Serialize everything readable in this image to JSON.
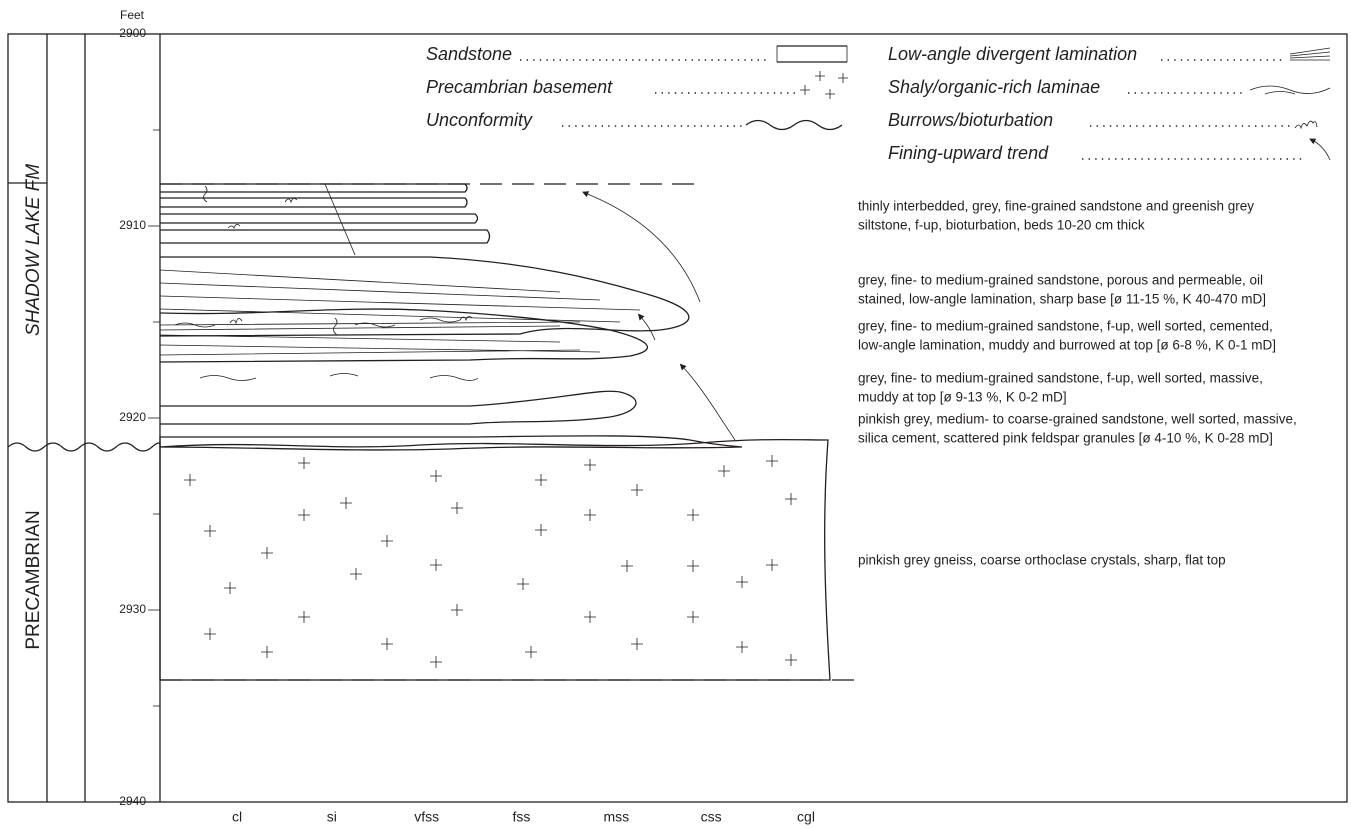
{
  "depth_axis": {
    "unit": "Feet",
    "ticks": [
      2900,
      2910,
      2920,
      2930,
      2940
    ]
  },
  "formations": [
    "SHADOW LAKE FM",
    "PRECAMBRIAN"
  ],
  "grain_sizes": [
    "cl",
    "si",
    "vfss",
    "fss",
    "mss",
    "css",
    "cgl"
  ],
  "legend": {
    "left": [
      "Sandstone",
      "Precambrian basement",
      "Unconformity"
    ],
    "right": [
      "Low-angle divergent lamination",
      "Shaly/organic-rich laminae",
      "Burrows/bioturbation",
      "Fining-upward trend"
    ]
  },
  "descriptions": [
    [
      "thinly interbedded, grey, fine-grained sandstone and greenish grey",
      "siltstone, f-up, bioturbation, beds 10-20 cm thick"
    ],
    [
      "grey, fine- to medium-grained sandstone, porous and permeable, oil",
      "stained, low-angle lamination, sharp base [ø 11-15 %, K 40-470 mD]"
    ],
    [
      "grey, fine- to medium-grained sandstone, f-up, well sorted, cemented,",
      "low-angle lamination, muddy and burrowed at top [ø 6-8 %, K 0-1 mD]"
    ],
    [
      "grey, fine- to medium-grained sandstone, f-up, well sorted, massive,",
      "muddy at top [ø 9-13 %, K 0-2 mD]"
    ],
    [
      "pinkish grey, medium- to coarse-grained sandstone, well sorted, massive,",
      "silica cement, scattered pink feldspar granules [ø 4-10 %, K 0-28 mD]"
    ],
    [
      "pinkish grey gneiss, coarse orthoclase crystals, sharp, flat top"
    ]
  ]
}
